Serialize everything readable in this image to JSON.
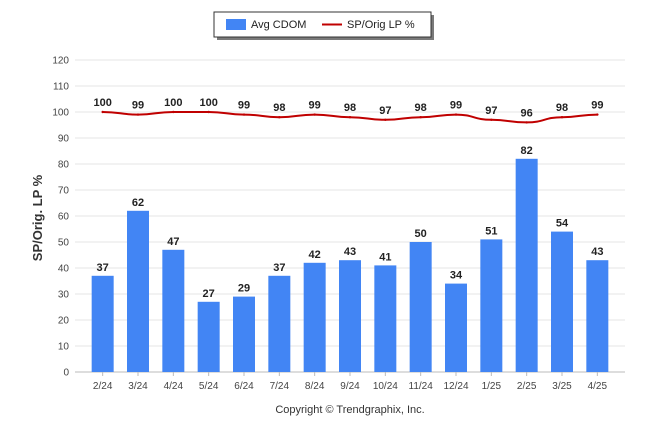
{
  "chart_data": {
    "type": "bar",
    "categories": [
      "2/24",
      "3/24",
      "4/24",
      "5/24",
      "6/24",
      "7/24",
      "8/24",
      "9/24",
      "10/24",
      "11/24",
      "12/24",
      "1/25",
      "2/25",
      "3/25",
      "4/25"
    ],
    "series": [
      {
        "name": "Avg CDOM",
        "type": "bar",
        "color": "#4285f4",
        "values": [
          37,
          62,
          47,
          27,
          29,
          37,
          42,
          43,
          41,
          50,
          34,
          51,
          82,
          54,
          43
        ]
      },
      {
        "name": "SP/Orig LP %",
        "type": "line",
        "color": "#c00000",
        "values": [
          100,
          99,
          100,
          100,
          99,
          98,
          99,
          98,
          97,
          98,
          99,
          97,
          96,
          98,
          99
        ]
      }
    ],
    "ylabel": "SP/Orig. LP %",
    "ylim": [
      0,
      120
    ],
    "yticks": [
      0,
      10,
      20,
      30,
      40,
      50,
      60,
      70,
      80,
      90,
      100,
      110,
      120
    ],
    "grid": true,
    "legend": "top-center"
  },
  "footer": "Copyright © Trendgraphix, Inc."
}
